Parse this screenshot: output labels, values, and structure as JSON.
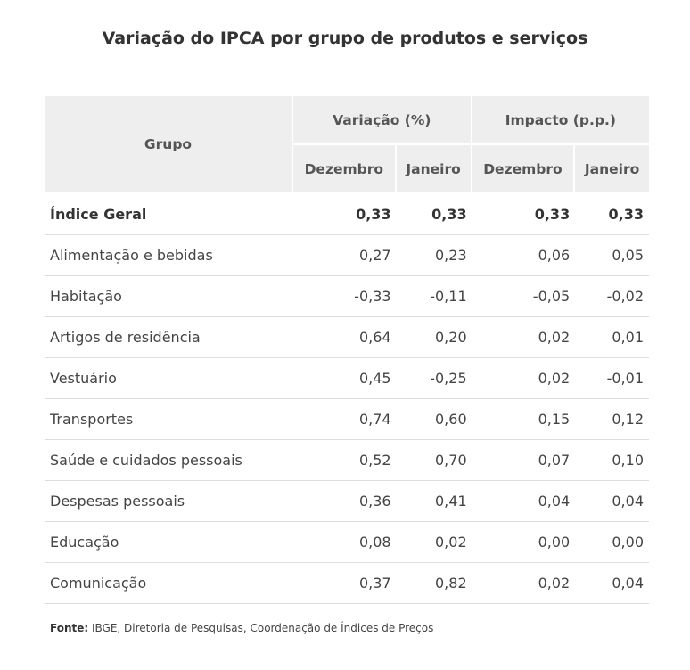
{
  "title": "Variação do IPCA por grupo de produtos e serviços",
  "headers": {
    "grupo": "Grupo",
    "variacao": "Variação (%)",
    "impacto": "Impacto (p.p.)",
    "sub": [
      "Dezembro",
      "Janeiro",
      "Dezembro",
      "Janeiro"
    ]
  },
  "rows": [
    {
      "grupo": "Índice Geral",
      "v": [
        "0,33",
        "0,33",
        "0,33",
        "0,33"
      ]
    },
    {
      "grupo": "Alimentação e bebidas",
      "v": [
        "0,27",
        "0,23",
        "0,06",
        "0,05"
      ]
    },
    {
      "grupo": "Habitação",
      "v": [
        "-0,33",
        "-0,11",
        "-0,05",
        "-0,02"
      ]
    },
    {
      "grupo": "Artigos de residência",
      "v": [
        "0,64",
        "0,20",
        "0,02",
        "0,01"
      ]
    },
    {
      "grupo": "Vestuário",
      "v": [
        "0,45",
        "-0,25",
        "0,02",
        "-0,01"
      ]
    },
    {
      "grupo": "Transportes",
      "v": [
        "0,74",
        "0,60",
        "0,15",
        "0,12"
      ]
    },
    {
      "grupo": "Saúde e cuidados pessoais",
      "v": [
        "0,52",
        "0,70",
        "0,07",
        "0,10"
      ]
    },
    {
      "grupo": "Despesas pessoais",
      "v": [
        "0,36",
        "0,41",
        "0,04",
        "0,04"
      ]
    },
    {
      "grupo": "Educação",
      "v": [
        "0,08",
        "0,02",
        "0,00",
        "0,00"
      ]
    },
    {
      "grupo": "Comunicação",
      "v": [
        "0,37",
        "0,82",
        "0,02",
        "0,04"
      ]
    }
  ],
  "footnote": {
    "label": "Fonte:",
    "text": " IBGE, Diretoria de Pesquisas, Coordenação de Índices de Preços"
  }
}
